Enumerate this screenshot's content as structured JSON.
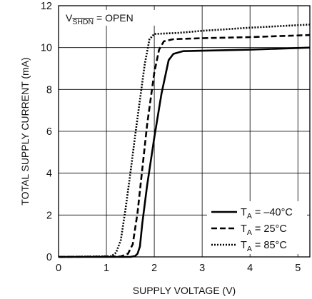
{
  "chart_data": {
    "type": "line",
    "xlabel": "SUPPLY VOLTAGE (V)",
    "ylabel": "TOTAL SUPPLY CURRENT (mA)",
    "xlim": [
      0,
      5.25
    ],
    "ylim": [
      0,
      12
    ],
    "x_ticks": [
      "0",
      "1",
      "2",
      "3",
      "4",
      "5"
    ],
    "y_ticks": [
      "0",
      "2",
      "4",
      "6",
      "8",
      "10",
      "12"
    ],
    "grid": true,
    "legend_position": "bottom-right",
    "annotation": {
      "prefix": "V",
      "sub": "SHDN",
      "suffix": " = OPEN"
    },
    "series": [
      {
        "label_prefix": "T",
        "label_sub": "A",
        "label_suffix": " = –40°C",
        "style": "solid",
        "x": [
          0,
          1.5,
          1.6,
          1.65,
          1.7,
          1.75,
          1.85,
          2.0,
          2.15,
          2.3,
          2.4,
          2.6,
          3.0,
          4.0,
          5.25
        ],
        "y": [
          0,
          0,
          0.04,
          0.15,
          0.5,
          1.6,
          3.4,
          5.7,
          7.8,
          9.4,
          9.7,
          9.83,
          9.85,
          9.9,
          10.0
        ]
      },
      {
        "label_prefix": "T",
        "label_sub": "A",
        "label_suffix": " = 25°C",
        "style": "dashed",
        "x": [
          0,
          1.3,
          1.45,
          1.55,
          1.65,
          1.75,
          1.85,
          2.0,
          2.1,
          2.2,
          2.4,
          3.0,
          4.0,
          5.25
        ],
        "y": [
          0,
          0.02,
          0.15,
          0.6,
          2.1,
          4.2,
          6.3,
          8.8,
          9.9,
          10.3,
          10.4,
          10.45,
          10.5,
          10.6
        ]
      },
      {
        "label_prefix": "T",
        "label_sub": "A",
        "label_suffix": " = 85°C",
        "style": "dotted",
        "x": [
          0,
          1.1,
          1.2,
          1.3,
          1.4,
          1.5,
          1.6,
          1.7,
          1.8,
          1.9,
          2.0,
          2.5,
          3.0,
          4.0,
          5.25
        ],
        "y": [
          0,
          0.03,
          0.2,
          0.8,
          2.3,
          4.0,
          5.8,
          7.5,
          9.2,
          10.4,
          10.65,
          10.7,
          10.8,
          10.95,
          11.1
        ]
      }
    ]
  }
}
